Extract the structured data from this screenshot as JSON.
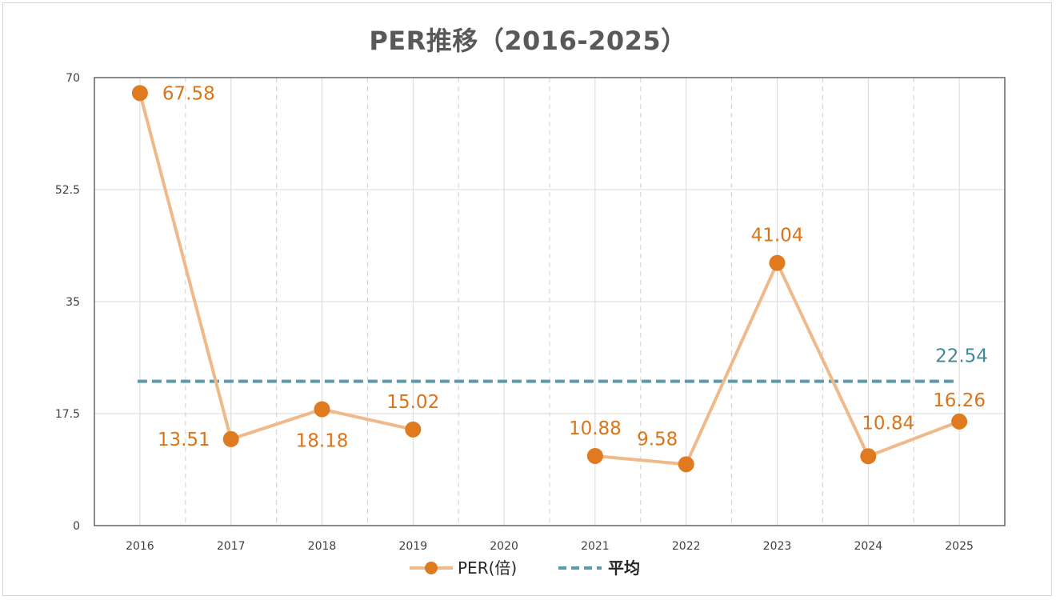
{
  "chart_data": {
    "type": "line",
    "title": "PER推移（2016-2025）",
    "categories": [
      "2016",
      "2017",
      "2018",
      "2019",
      "2020",
      "2021",
      "2022",
      "2023",
      "2024",
      "2025"
    ],
    "series": [
      {
        "name": "PER(倍)",
        "values": [
          67.58,
          13.51,
          18.18,
          15.02,
          null,
          10.88,
          9.58,
          41.04,
          10.84,
          16.26
        ],
        "color": "#e07a1f",
        "line_color": "#f0b98a"
      },
      {
        "name": "平均",
        "value": 22.54,
        "color": "#5b9aa8",
        "style": "dashed",
        "label": "22.54"
      }
    ],
    "data_labels": [
      "67.58",
      "13.51",
      "18.18",
      "15.02",
      "",
      "10.88",
      "9.58",
      "41.04",
      "10.84",
      "16.26"
    ],
    "ylim": [
      0,
      70
    ],
    "yticks": [
      "0",
      "17.5",
      "35",
      "52.5",
      "70"
    ],
    "xlabel": "",
    "ylabel": "",
    "legend": "bottom",
    "grid": true
  }
}
